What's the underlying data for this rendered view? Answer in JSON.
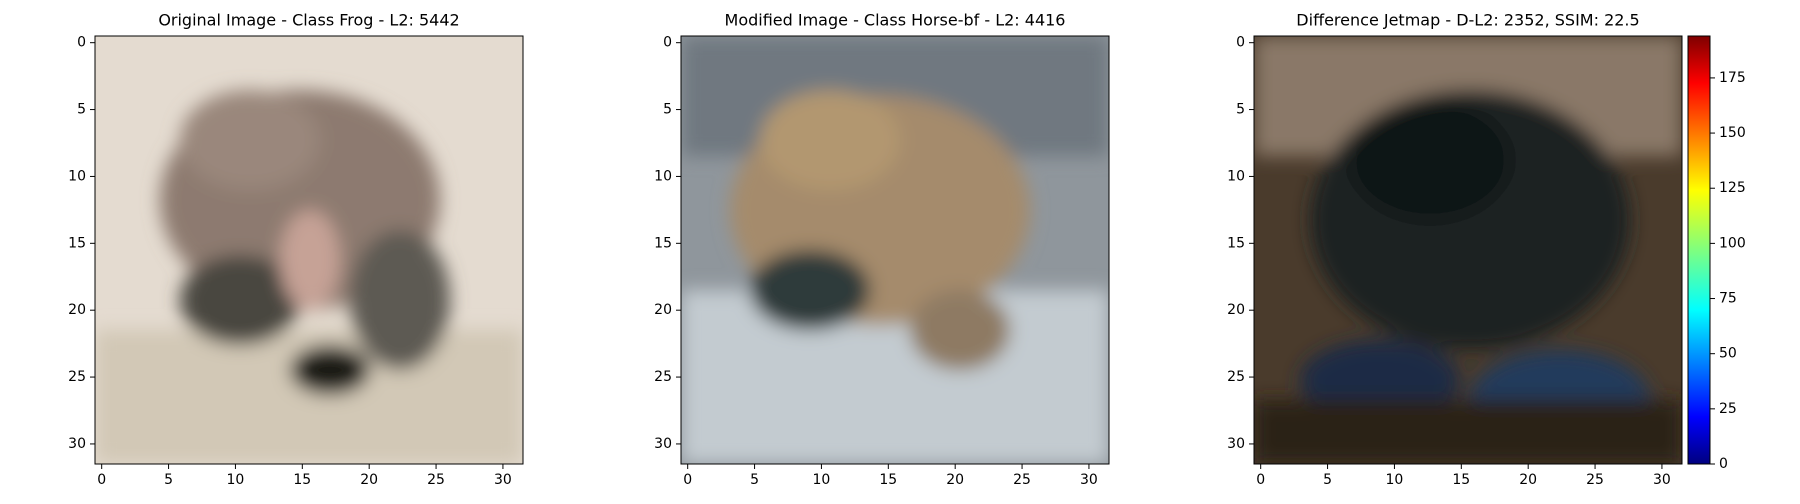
{
  "chart_data": [
    {
      "type": "image",
      "title": "Original Image - Class Frog - L2: 5442",
      "title_color": "#000000",
      "xlim": [
        -0.5,
        31.5
      ],
      "ylim": [
        31.5,
        -0.5
      ],
      "xticks": [
        0,
        5,
        10,
        15,
        20,
        25,
        30
      ],
      "yticks": [
        0,
        5,
        10,
        15,
        20,
        25,
        30
      ]
    },
    {
      "type": "image",
      "title": "Modified Image - Class Horse-bf - L2: 4416",
      "title_color": "#ff0000",
      "xlim": [
        -0.5,
        31.5
      ],
      "ylim": [
        31.5,
        -0.5
      ],
      "xticks": [
        0,
        5,
        10,
        15,
        20,
        25,
        30
      ],
      "yticks": [
        0,
        5,
        10,
        15,
        20,
        25,
        30
      ]
    },
    {
      "type": "image",
      "title": "Difference Jetmap - D-L2: 2352, SSIM: 22.5",
      "title_color": "#000000",
      "xlim": [
        -0.5,
        31.5
      ],
      "ylim": [
        31.5,
        -0.5
      ],
      "xticks": [
        0,
        5,
        10,
        15,
        20,
        25,
        30
      ],
      "yticks": [
        0,
        5,
        10,
        15,
        20,
        25,
        30
      ],
      "colorbar": {
        "colormap": "jet",
        "clim": [
          0,
          194
        ],
        "ticks": [
          0,
          25,
          50,
          75,
          100,
          125,
          150,
          175
        ]
      }
    }
  ]
}
